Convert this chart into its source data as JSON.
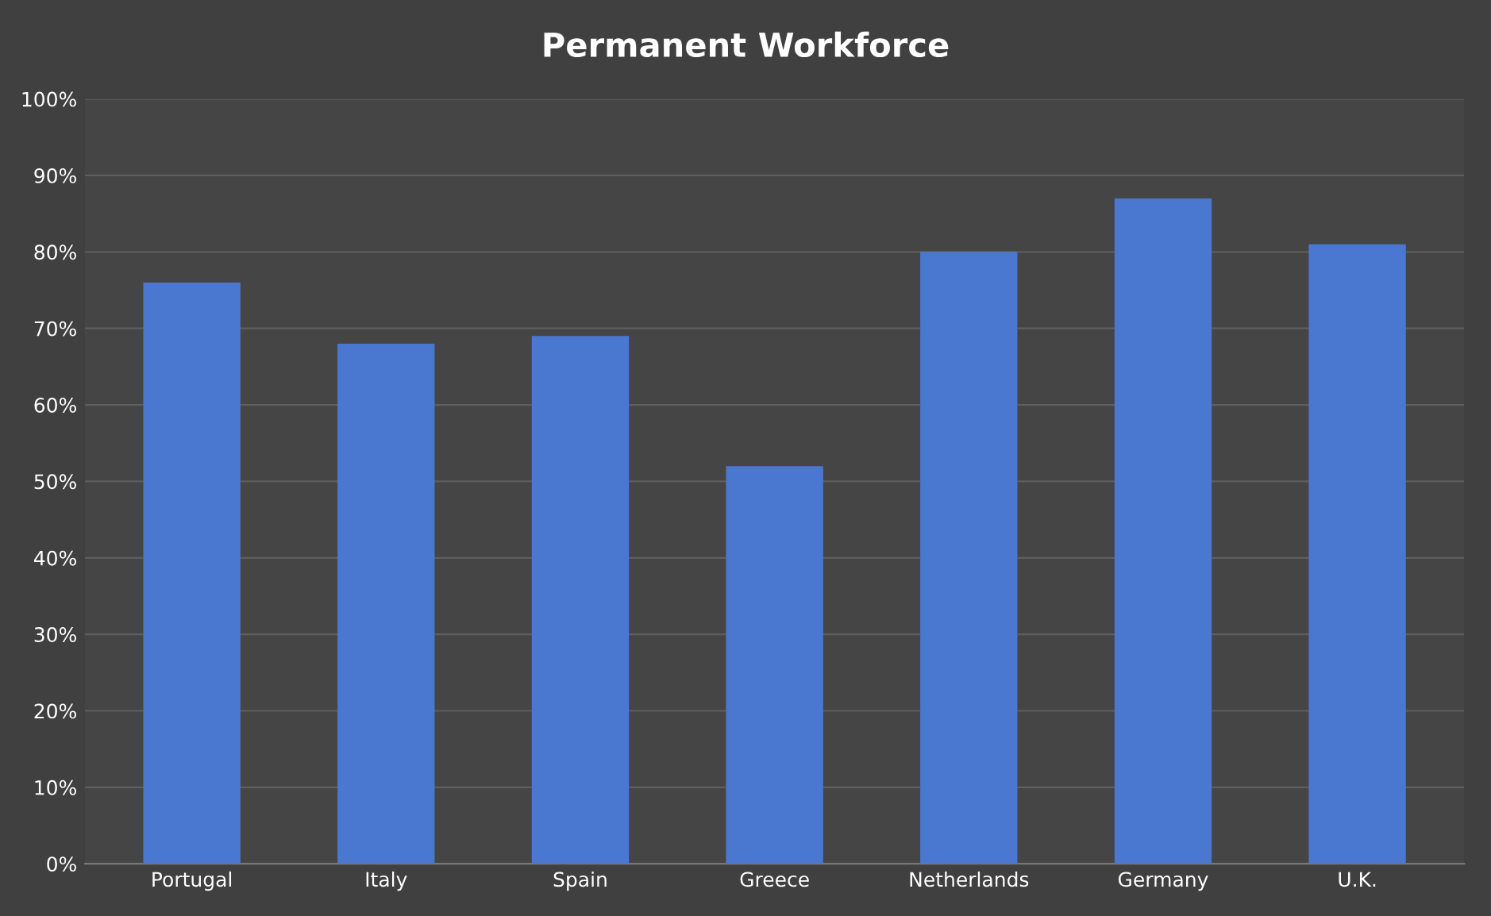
{
  "chart_data": {
    "type": "bar",
    "title": "Permanent Workforce",
    "categories": [
      "Portugal",
      "Italy",
      "Spain",
      "Greece",
      "Netherlands",
      "Germany",
      "U.K."
    ],
    "values": [
      76,
      68,
      69,
      52,
      80,
      87,
      81
    ],
    "color": "#4a78d0",
    "ylim": [
      0,
      100
    ],
    "yticks": [
      {
        "value": 0,
        "label": "0%"
      },
      {
        "value": 10,
        "label": "10%"
      },
      {
        "value": 20,
        "label": "20%"
      },
      {
        "value": 30,
        "label": "30%"
      },
      {
        "value": 40,
        "label": "40%"
      },
      {
        "value": 50,
        "label": "50%"
      },
      {
        "value": 60,
        "label": "60%"
      },
      {
        "value": 70,
        "label": "70%"
      },
      {
        "value": 80,
        "label": "80%"
      },
      {
        "value": 90,
        "label": "90%"
      },
      {
        "value": 100,
        "label": "100%"
      }
    ],
    "grid": "y"
  }
}
